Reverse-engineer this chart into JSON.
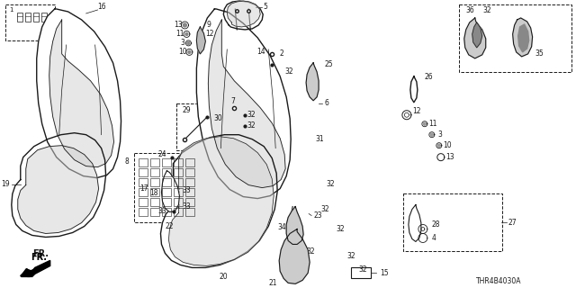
{
  "bg_color": "#ffffff",
  "line_color": "#1a1a1a",
  "part_number": "THR4B4030A",
  "figure_width": 6.4,
  "figure_height": 3.2,
  "dpi": 100
}
